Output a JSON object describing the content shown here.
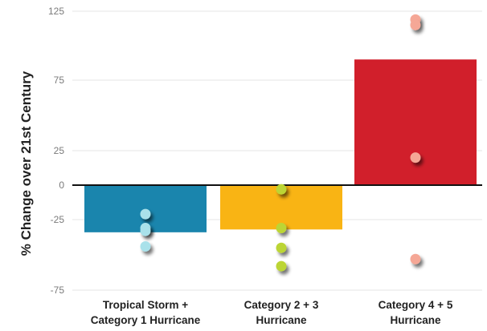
{
  "chart_data": {
    "type": "bar",
    "ylabel": "% Change over 21st Century",
    "yticks": [
      "125",
      "75",
      "25",
      "0",
      "-25",
      "-75"
    ],
    "ytick_values": [
      125,
      75,
      25,
      0,
      -25,
      -75
    ],
    "ylim": [
      -75,
      125
    ],
    "grid": true,
    "categories": [
      [
        "Tropical Storm +",
        "Category 1 Hurricane"
      ],
      [
        "Category 2 + 3",
        "Hurricane"
      ],
      [
        "Category 4 + 5",
        "Hurricane"
      ]
    ],
    "values": [
      -34,
      -32,
      90
    ],
    "bar_colors": [
      "#1a85ad",
      "#f9b414",
      "#d11f2b"
    ],
    "point_colors": [
      "#a9e1ea",
      "#bcd535",
      "#f5a796"
    ],
    "points": [
      [
        -21,
        -31,
        -33,
        -44
      ],
      [
        -3,
        -31,
        -45,
        -58
      ],
      [
        119,
        115,
        20,
        -53
      ]
    ]
  }
}
